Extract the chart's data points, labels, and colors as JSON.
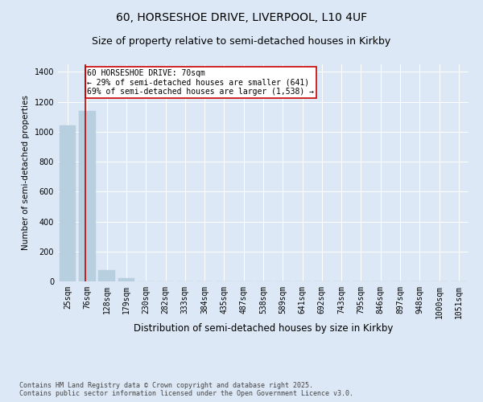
{
  "title1": "60, HORSESHOE DRIVE, LIVERPOOL, L10 4UF",
  "title2": "Size of property relative to semi-detached houses in Kirkby",
  "xlabel": "Distribution of semi-detached houses by size in Kirkby",
  "ylabel": "Number of semi-detached properties",
  "categories": [
    "25sqm",
    "76sqm",
    "128sqm",
    "179sqm",
    "230sqm",
    "282sqm",
    "333sqm",
    "384sqm",
    "435sqm",
    "487sqm",
    "538sqm",
    "589sqm",
    "641sqm",
    "692sqm",
    "743sqm",
    "795sqm",
    "846sqm",
    "897sqm",
    "948sqm",
    "1000sqm",
    "1051sqm"
  ],
  "values": [
    1040,
    1140,
    75,
    20,
    0,
    0,
    0,
    0,
    0,
    0,
    0,
    0,
    0,
    0,
    0,
    0,
    0,
    0,
    0,
    0,
    0
  ],
  "bar_color": "#b8cfe0",
  "bar_edgecolor": "#b8cfe0",
  "property_line_x": 0.88,
  "property_line_color": "#cc0000",
  "annotation_text": "60 HORSESHOE DRIVE: 70sqm\n← 29% of semi-detached houses are smaller (641)\n69% of semi-detached houses are larger (1,538) →",
  "annotation_box_color": "#cc0000",
  "ylim": [
    0,
    1450
  ],
  "yticks": [
    0,
    200,
    400,
    600,
    800,
    1000,
    1200,
    1400
  ],
  "background_color": "#dce8f5",
  "plot_background_color": "#dce8f5",
  "footer_text": "Contains HM Land Registry data © Crown copyright and database right 2025.\nContains public sector information licensed under the Open Government Licence v3.0.",
  "title_fontsize": 10,
  "subtitle_fontsize": 9,
  "annotation_fontsize": 7,
  "tick_fontsize": 7,
  "ylabel_fontsize": 7.5,
  "xlabel_fontsize": 8.5
}
